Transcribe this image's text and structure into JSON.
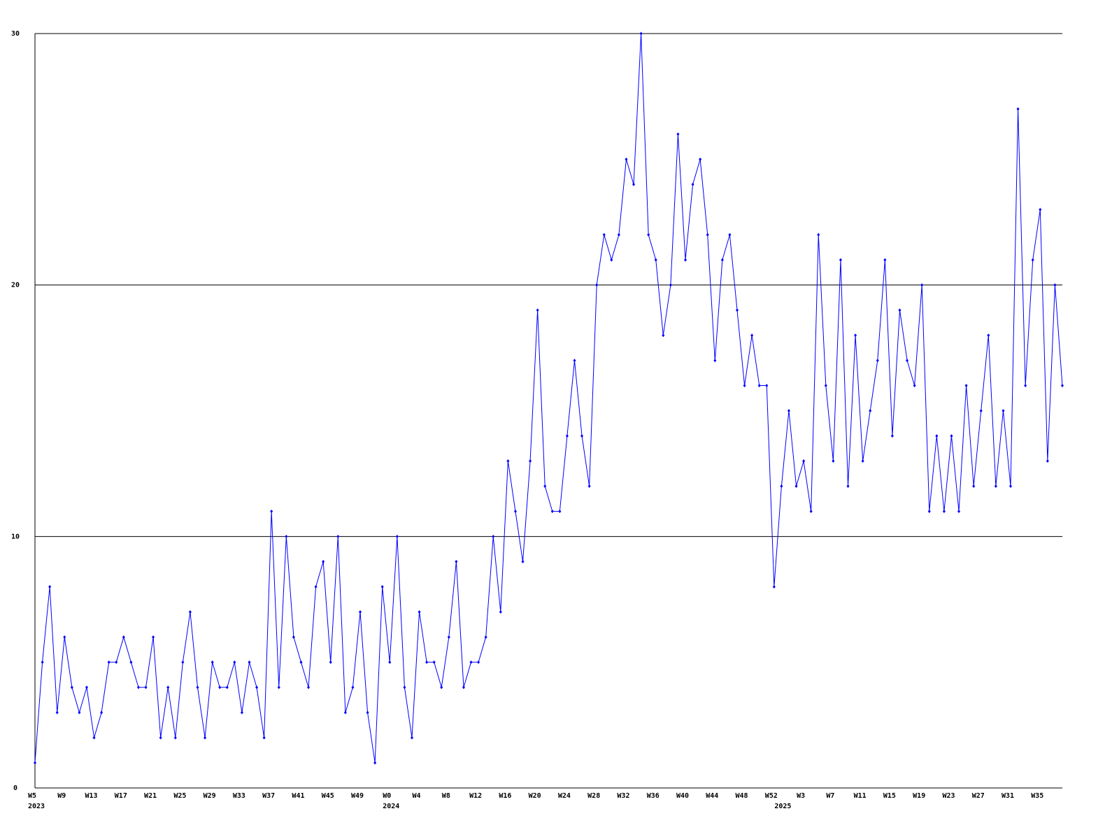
{
  "chart_data": {
    "type": "line",
    "categories": [
      "W5",
      null,
      null,
      null,
      "W9",
      null,
      null,
      null,
      "W13",
      null,
      null,
      null,
      "W17",
      null,
      null,
      null,
      "W21",
      null,
      null,
      null,
      "W25",
      null,
      null,
      null,
      "W29",
      null,
      null,
      null,
      "W33",
      null,
      null,
      null,
      "W37",
      null,
      null,
      null,
      "W41",
      null,
      null,
      null,
      "W45",
      null,
      null,
      null,
      "W49",
      null,
      null,
      null,
      "W0",
      null,
      null,
      null,
      "W4",
      null,
      null,
      null,
      "W8",
      null,
      null,
      null,
      "W12",
      null,
      null,
      null,
      "W16",
      null,
      null,
      null,
      "W20",
      null,
      null,
      null,
      "W24",
      null,
      null,
      null,
      "W28",
      null,
      null,
      null,
      "W32",
      null,
      null,
      null,
      "W36",
      null,
      null,
      null,
      "W40",
      null,
      null,
      null,
      "W44",
      null,
      null,
      null,
      "W48",
      null,
      null,
      null,
      "W52",
      null,
      null,
      null,
      "W3",
      null,
      null,
      null,
      "W7",
      null,
      null,
      null,
      "W11",
      null,
      null,
      null,
      "W15",
      null,
      null,
      null,
      "W19",
      null,
      null,
      null,
      "W23",
      null,
      null,
      null,
      "W27",
      null,
      null,
      null,
      "W31",
      null,
      null,
      null,
      "W35",
      null,
      null,
      null
    ],
    "years": [
      "2023",
      null,
      null,
      null,
      null,
      null,
      null,
      null,
      null,
      null,
      null,
      null,
      null,
      null,
      null,
      null,
      null,
      null,
      null,
      null,
      null,
      null,
      null,
      null,
      null,
      null,
      null,
      null,
      null,
      null,
      null,
      null,
      null,
      null,
      null,
      null,
      null,
      null,
      null,
      null,
      null,
      null,
      null,
      null,
      null,
      null,
      null,
      null,
      "2024",
      null,
      null,
      null,
      null,
      null,
      null,
      null,
      null,
      null,
      null,
      null,
      null,
      null,
      null,
      null,
      null,
      null,
      null,
      null,
      null,
      null,
      null,
      null,
      null,
      null,
      null,
      null,
      null,
      null,
      null,
      null,
      null,
      null,
      null,
      null,
      null,
      null,
      null,
      null,
      null,
      null,
      null,
      null,
      null,
      null,
      null,
      null,
      null,
      null,
      null,
      null,
      null,
      "2025",
      null,
      null,
      null,
      null,
      null,
      null,
      null,
      null,
      null,
      null,
      null,
      null,
      null,
      null,
      null,
      null,
      null,
      null,
      null,
      null,
      null,
      null,
      null,
      null,
      null,
      null,
      null,
      null,
      null,
      null,
      null,
      null,
      null,
      null,
      null,
      null,
      null,
      null
    ],
    "values": [
      1,
      5,
      8,
      3,
      6,
      4,
      3,
      4,
      2,
      3,
      5,
      5,
      6,
      5,
      4,
      4,
      6,
      2,
      4,
      2,
      5,
      7,
      4,
      2,
      5,
      4,
      4,
      5,
      3,
      5,
      4,
      2,
      11,
      4,
      10,
      6,
      5,
      4,
      8,
      9,
      5,
      10,
      3,
      4,
      7,
      3,
      1,
      8,
      5,
      10,
      4,
      2,
      7,
      5,
      5,
      4,
      6,
      9,
      4,
      5,
      5,
      6,
      10,
      7,
      13,
      11,
      9,
      13,
      19,
      12,
      11,
      11,
      14,
      17,
      14,
      12,
      20,
      22,
      21,
      22,
      25,
      24,
      30,
      22,
      21,
      18,
      20,
      26,
      21,
      24,
      25,
      22,
      17,
      21,
      22,
      19,
      16,
      18,
      16,
      16,
      8,
      12,
      15,
      12,
      13,
      11,
      22,
      16,
      13,
      21,
      12,
      18,
      13,
      15,
      17,
      21,
      14,
      19,
      17,
      16,
      20,
      11,
      14,
      11,
      14,
      11,
      16,
      12,
      15,
      18,
      12,
      15,
      12,
      27,
      16,
      21,
      23,
      13,
      20,
      16
    ],
    "color": "#0000ff",
    "ylim": [
      0,
      30
    ],
    "yticks": [
      0,
      10,
      20,
      30
    ],
    "grid": true
  }
}
